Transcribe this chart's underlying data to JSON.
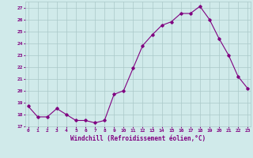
{
  "x": [
    0,
    1,
    2,
    3,
    4,
    5,
    6,
    7,
    8,
    9,
    10,
    11,
    12,
    13,
    14,
    15,
    16,
    17,
    18,
    19,
    20,
    21,
    22,
    23
  ],
  "y": [
    18.7,
    17.8,
    17.8,
    18.5,
    18.0,
    17.5,
    17.5,
    17.3,
    17.5,
    19.7,
    20.0,
    21.9,
    23.8,
    24.7,
    25.5,
    25.8,
    26.5,
    26.5,
    27.1,
    26.0,
    24.4,
    23.0,
    21.2,
    20.2
  ],
  "line_color": "#800080",
  "marker": "D",
  "marker_size": 1.8,
  "bg_color": "#d0eaea",
  "grid_color": "#aac8c8",
  "tick_color": "#800080",
  "label_color": "#800080",
  "xlabel": "Windchill (Refroidissement éolien,°C)",
  "ylim": [
    17,
    27.5
  ],
  "yticks": [
    17,
    18,
    19,
    20,
    21,
    22,
    23,
    24,
    25,
    26,
    27
  ],
  "xticks": [
    0,
    1,
    2,
    3,
    4,
    5,
    6,
    7,
    8,
    9,
    10,
    11,
    12,
    13,
    14,
    15,
    16,
    17,
    18,
    19,
    20,
    21,
    22,
    23
  ],
  "xlim": [
    -0.3,
    23.3
  ]
}
